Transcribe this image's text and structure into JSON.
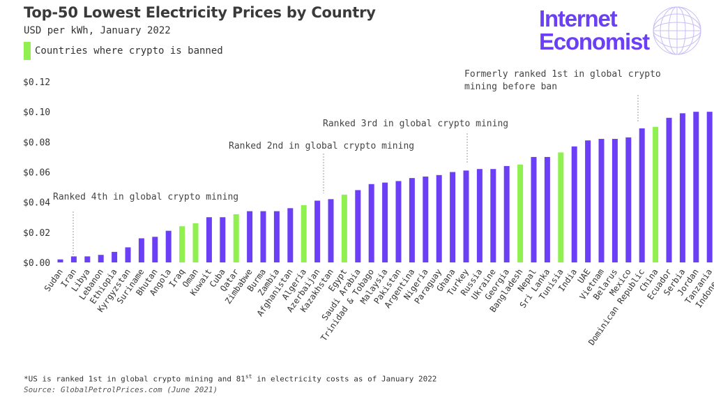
{
  "title": "Top-50 Lowest Electricity Prices by Country",
  "subtitle": "USD per kWh, January 2022",
  "legend_label": "Countries where crypto is banned",
  "brand_line1": "Internet",
  "brand_line2": "Economist",
  "footnote_pre": "*US is ranked 1st in global crypto mining and 81",
  "footnote_sup": "st",
  "footnote_post": " in electricity costs as of January 2022",
  "source": "Source: GlobalPetrolPrices.com (June 2021)",
  "colors": {
    "default": "#6b3ff5",
    "banned": "#8ff04f",
    "brand": "#6b3ff5"
  },
  "chart_data": {
    "type": "bar",
    "ylim": [
      0,
      0.12
    ],
    "y_ticks": [
      0,
      0.02,
      0.04,
      0.06,
      0.08,
      0.1,
      0.12
    ],
    "y_tick_labels": [
      "$0.00",
      "$0.02",
      "$0.04",
      "$0.06",
      "$0.08",
      "$0.10",
      "$0.12"
    ],
    "grid": false,
    "categories": [
      "Sudan",
      "Iran",
      "Libya",
      "Lebanon",
      "Ethiopia",
      "Kyrgyzstan",
      "Suriname",
      "Bhutan",
      "Angola",
      "Iraq",
      "Oman",
      "Kuwait",
      "Cuba",
      "Qatar",
      "Zimbabwe",
      "Burma",
      "Zambia",
      "Afghanistan",
      "Algeria",
      "Azerbaijan",
      "Kazakhstan",
      "Egypt",
      "Saudi Arabia",
      "Trinidad & Tobago",
      "Malaysia",
      "Pakistan",
      "Argentina",
      "Nigeria",
      "Paraguay",
      "Ghana",
      "Turkey",
      "Russia",
      "Ukraine",
      "Georgia",
      "Bangladesh",
      "Nepal",
      "Sri Lanka",
      "Tunisia",
      "India",
      "UAE",
      "Vietnam",
      "Belarus",
      "Mexico",
      "Dominican Republic",
      "China",
      "Ecuador",
      "Serbia",
      "Jordan",
      "Tanzania",
      "Indonesia"
    ],
    "values": [
      0.002,
      0.004,
      0.004,
      0.005,
      0.007,
      0.01,
      0.016,
      0.017,
      0.021,
      0.024,
      0.026,
      0.03,
      0.03,
      0.032,
      0.034,
      0.034,
      0.034,
      0.036,
      0.038,
      0.041,
      0.042,
      0.045,
      0.048,
      0.052,
      0.053,
      0.054,
      0.056,
      0.057,
      0.058,
      0.06,
      0.061,
      0.062,
      0.062,
      0.064,
      0.065,
      0.07,
      0.07,
      0.073,
      0.077,
      0.081,
      0.082,
      0.082,
      0.083,
      0.089,
      0.09,
      0.096,
      0.099,
      0.1,
      0.1,
      0.101
    ],
    "crypto_banned": [
      false,
      false,
      false,
      false,
      false,
      false,
      false,
      false,
      false,
      true,
      true,
      false,
      false,
      true,
      false,
      false,
      false,
      false,
      true,
      false,
      false,
      true,
      false,
      false,
      false,
      false,
      false,
      false,
      false,
      false,
      false,
      false,
      false,
      false,
      true,
      false,
      false,
      true,
      false,
      false,
      false,
      false,
      false,
      false,
      true,
      false,
      false,
      false,
      false,
      false
    ],
    "annotations": [
      {
        "category": "Kyrgyzstan",
        "lines": [
          "Ranked 4th in global crypto mining"
        ]
      },
      {
        "category": "Kazakhstan",
        "lines": [
          "Ranked 2nd in global crypto mining"
        ]
      },
      {
        "category": "Russia",
        "lines": [
          "Ranked 3rd in global crypto mining"
        ]
      },
      {
        "category": "China",
        "lines": [
          "Formerly ranked 1st in global crypto",
          "mining before ban"
        ]
      }
    ]
  }
}
